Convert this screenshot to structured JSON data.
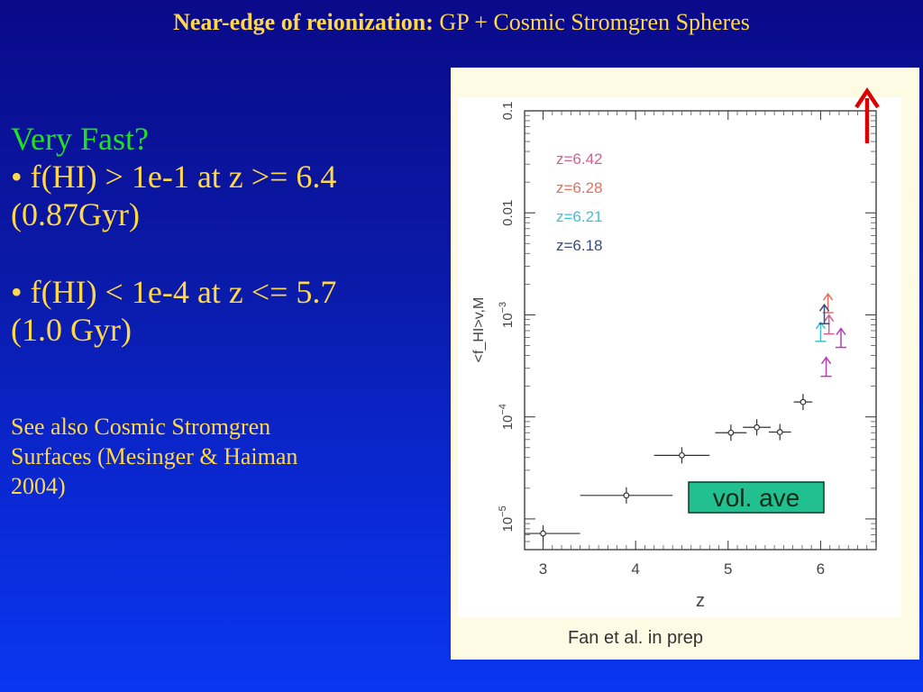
{
  "slide": {
    "title_bold": "Near-edge of reionization:",
    "title_rest": " GP + Cosmic Stromgren Spheres",
    "heading": "Very Fast?",
    "bullet1_line1": "• f(HI) > 1e-1 at z >= 6.4",
    "bullet1_line2": "(0.87Gyr)",
    "bullet2_line1": "• f(HI) < 1e-4 at z <= 5.7",
    "bullet2_line2": "(1.0 Gyr)",
    "note_line1": "See also Cosmic Stromgren",
    "note_line2": "Surfaces (Mesinger & Haiman",
    "note_line3": "2004)",
    "caption": "Fan et al. in prep"
  },
  "chart_data": {
    "type": "scatter",
    "xlabel": "z",
    "ylabel": "<f_HI>v,M",
    "xlim": [
      2.8,
      6.6
    ],
    "ylim": [
      5e-06,
      0.1
    ],
    "y_scale": "log",
    "x_ticks": [
      3,
      4,
      5,
      6
    ],
    "y_ticks": [
      {
        "value": 1e-05,
        "base": "10",
        "exp": "−5"
      },
      {
        "value": 0.0001,
        "base": "10",
        "exp": "−4"
      },
      {
        "value": 0.001,
        "base": "10",
        "exp": "−3"
      },
      {
        "value": 0.01,
        "label": "0.01"
      },
      {
        "value": 0.1,
        "label": "0.1"
      }
    ],
    "annotation": "vol. ave",
    "series": [
      {
        "color": "#333333",
        "points": [
          {
            "x": 3.0,
            "y": 7.2e-06,
            "xerr": [
              0.2,
              0.4
            ]
          },
          {
            "x": 3.9,
            "y": 1.7e-05,
            "xerr": [
              0.5,
              0.5
            ]
          },
          {
            "x": 4.5,
            "y": 4.2e-05,
            "xerr": [
              0.3,
              0.3
            ]
          },
          {
            "x": 5.03,
            "y": 7e-05,
            "xerr": [
              0.17,
              0.17
            ]
          },
          {
            "x": 5.31,
            "y": 7.9e-05,
            "xerr": [
              0.15,
              0.15
            ]
          },
          {
            "x": 5.56,
            "y": 7.1e-05,
            "xerr": [
              0.12,
              0.12
            ]
          },
          {
            "x": 5.81,
            "y": 0.00014,
            "xerr": [
              0.1,
              0.1
            ]
          }
        ]
      }
    ],
    "lower_limits": [
      {
        "name": "z=6.42",
        "color": "#d06090",
        "x": 6.09,
        "y": 0.00065
      },
      {
        "name": "z=6.28",
        "color": "#e07060",
        "x": 6.08,
        "y": 0.00105
      },
      {
        "name": "z=6.21",
        "color": "#40c0d0",
        "x": 6.0,
        "y": 0.00055
      },
      {
        "name": "z=6.18",
        "color": "#3a4a7a",
        "x": 6.04,
        "y": 0.00082
      },
      {
        "color": "#b040b0",
        "x": 6.22,
        "y": 0.00048
      },
      {
        "color": "#b040b0",
        "x": 6.06,
        "y": 0.00025
      }
    ],
    "upper_arrow_color": "#dd0000"
  }
}
